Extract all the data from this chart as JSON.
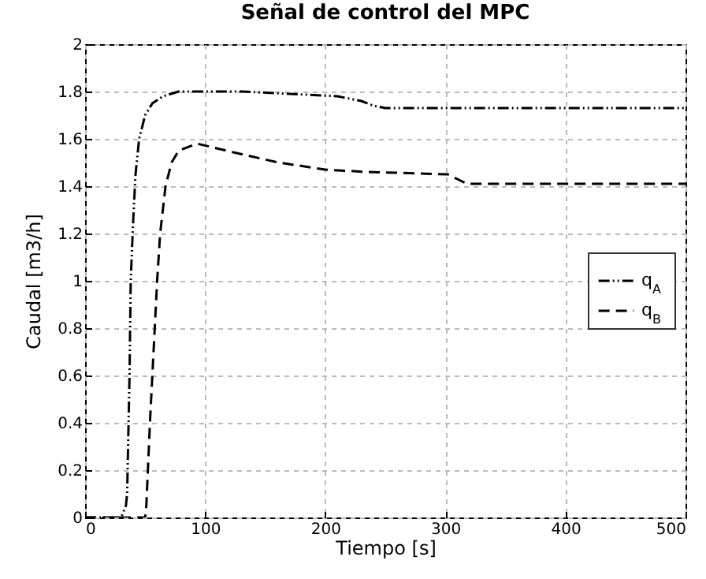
{
  "chart_data": {
    "type": "line",
    "title": "Señal de control del MPC",
    "xlabel": "Tiempo [s]",
    "ylabel": "Caudal [m3/h]",
    "xlim": [
      0,
      500
    ],
    "xticks": [
      0,
      100,
      200,
      300,
      400,
      500
    ],
    "ylim": [
      0,
      2
    ],
    "yticks": [
      0,
      0.2,
      0.4,
      0.6,
      0.8,
      1,
      1.2,
      1.4,
      1.6,
      1.8,
      2
    ],
    "grid": true,
    "legend": "right",
    "marker": "none",
    "series": [
      {
        "name": "q$_{A}$",
        "color": "#000000",
        "line_style": "dashdot",
        "x": [
          0,
          30,
          34,
          35,
          37,
          38,
          40,
          42,
          45,
          50,
          56,
          65,
          78,
          100,
          130,
          170,
          210,
          230,
          240,
          250,
          300,
          400,
          500
        ],
        "values": [
          0,
          0,
          0.05,
          0.1,
          0.6,
          1.0,
          1.25,
          1.45,
          1.6,
          1.7,
          1.75,
          1.78,
          1.8,
          1.8,
          1.8,
          1.79,
          1.78,
          1.76,
          1.74,
          1.73,
          1.73,
          1.73,
          1.73
        ]
      },
      {
        "name": "q$_{B}$",
        "color": "#000000",
        "line_style": "dashed",
        "x": [
          0,
          50,
          51,
          54,
          58,
          60,
          62.5,
          67,
          72,
          78,
          93,
          126,
          161,
          200,
          235,
          302,
          310,
          318,
          350,
          400,
          500
        ],
        "values": [
          0,
          0,
          0.05,
          0.4,
          0.8,
          1.0,
          1.2,
          1.4,
          1.5,
          1.55,
          1.58,
          1.54,
          1.5,
          1.47,
          1.46,
          1.45,
          1.43,
          1.41,
          1.41,
          1.41,
          1.41
        ]
      }
    ]
  }
}
